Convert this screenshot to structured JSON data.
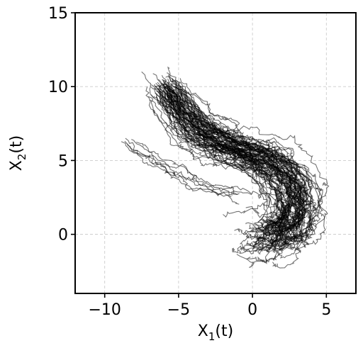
{
  "chart_data": {
    "type": "line",
    "xlabel": {
      "base": "X",
      "sub": "1",
      "suffix": "(t)"
    },
    "ylabel": {
      "base": "X",
      "sub": "2",
      "suffix": "(t)"
    },
    "xlim": [
      -12,
      7
    ],
    "ylim": [
      -4,
      15
    ],
    "xticks": [
      -10,
      -5,
      0,
      5
    ],
    "yticks": [
      0,
      5,
      10,
      15
    ],
    "xtick_labels": [
      "−10",
      "−5",
      "0",
      "5"
    ],
    "ytick_labels": [
      "0",
      "5",
      "10",
      "15"
    ],
    "grid": true,
    "num_trajectories": 80,
    "line_color": "#000000",
    "centerline": {
      "x": [
        -6.0,
        -5.0,
        -4.0,
        -3.0,
        -2.0,
        -1.0,
        0.0,
        1.0,
        2.0,
        2.7,
        3.0,
        2.8,
        2.3,
        1.5,
        0.8
      ],
      "y": [
        10.0,
        8.6,
        7.3,
        6.6,
        6.1,
        5.7,
        5.3,
        4.9,
        4.2,
        3.1,
        1.9,
        0.9,
        0.2,
        -0.2,
        -0.1
      ]
    },
    "secondary_branch": {
      "x": [
        -8.5,
        -7.5,
        -6.3,
        -5.2,
        -4.0,
        -2.8,
        -1.6,
        -0.5
      ],
      "y": [
        6.3,
        5.5,
        4.7,
        4.1,
        3.6,
        3.3,
        3.0,
        2.6
      ]
    }
  }
}
